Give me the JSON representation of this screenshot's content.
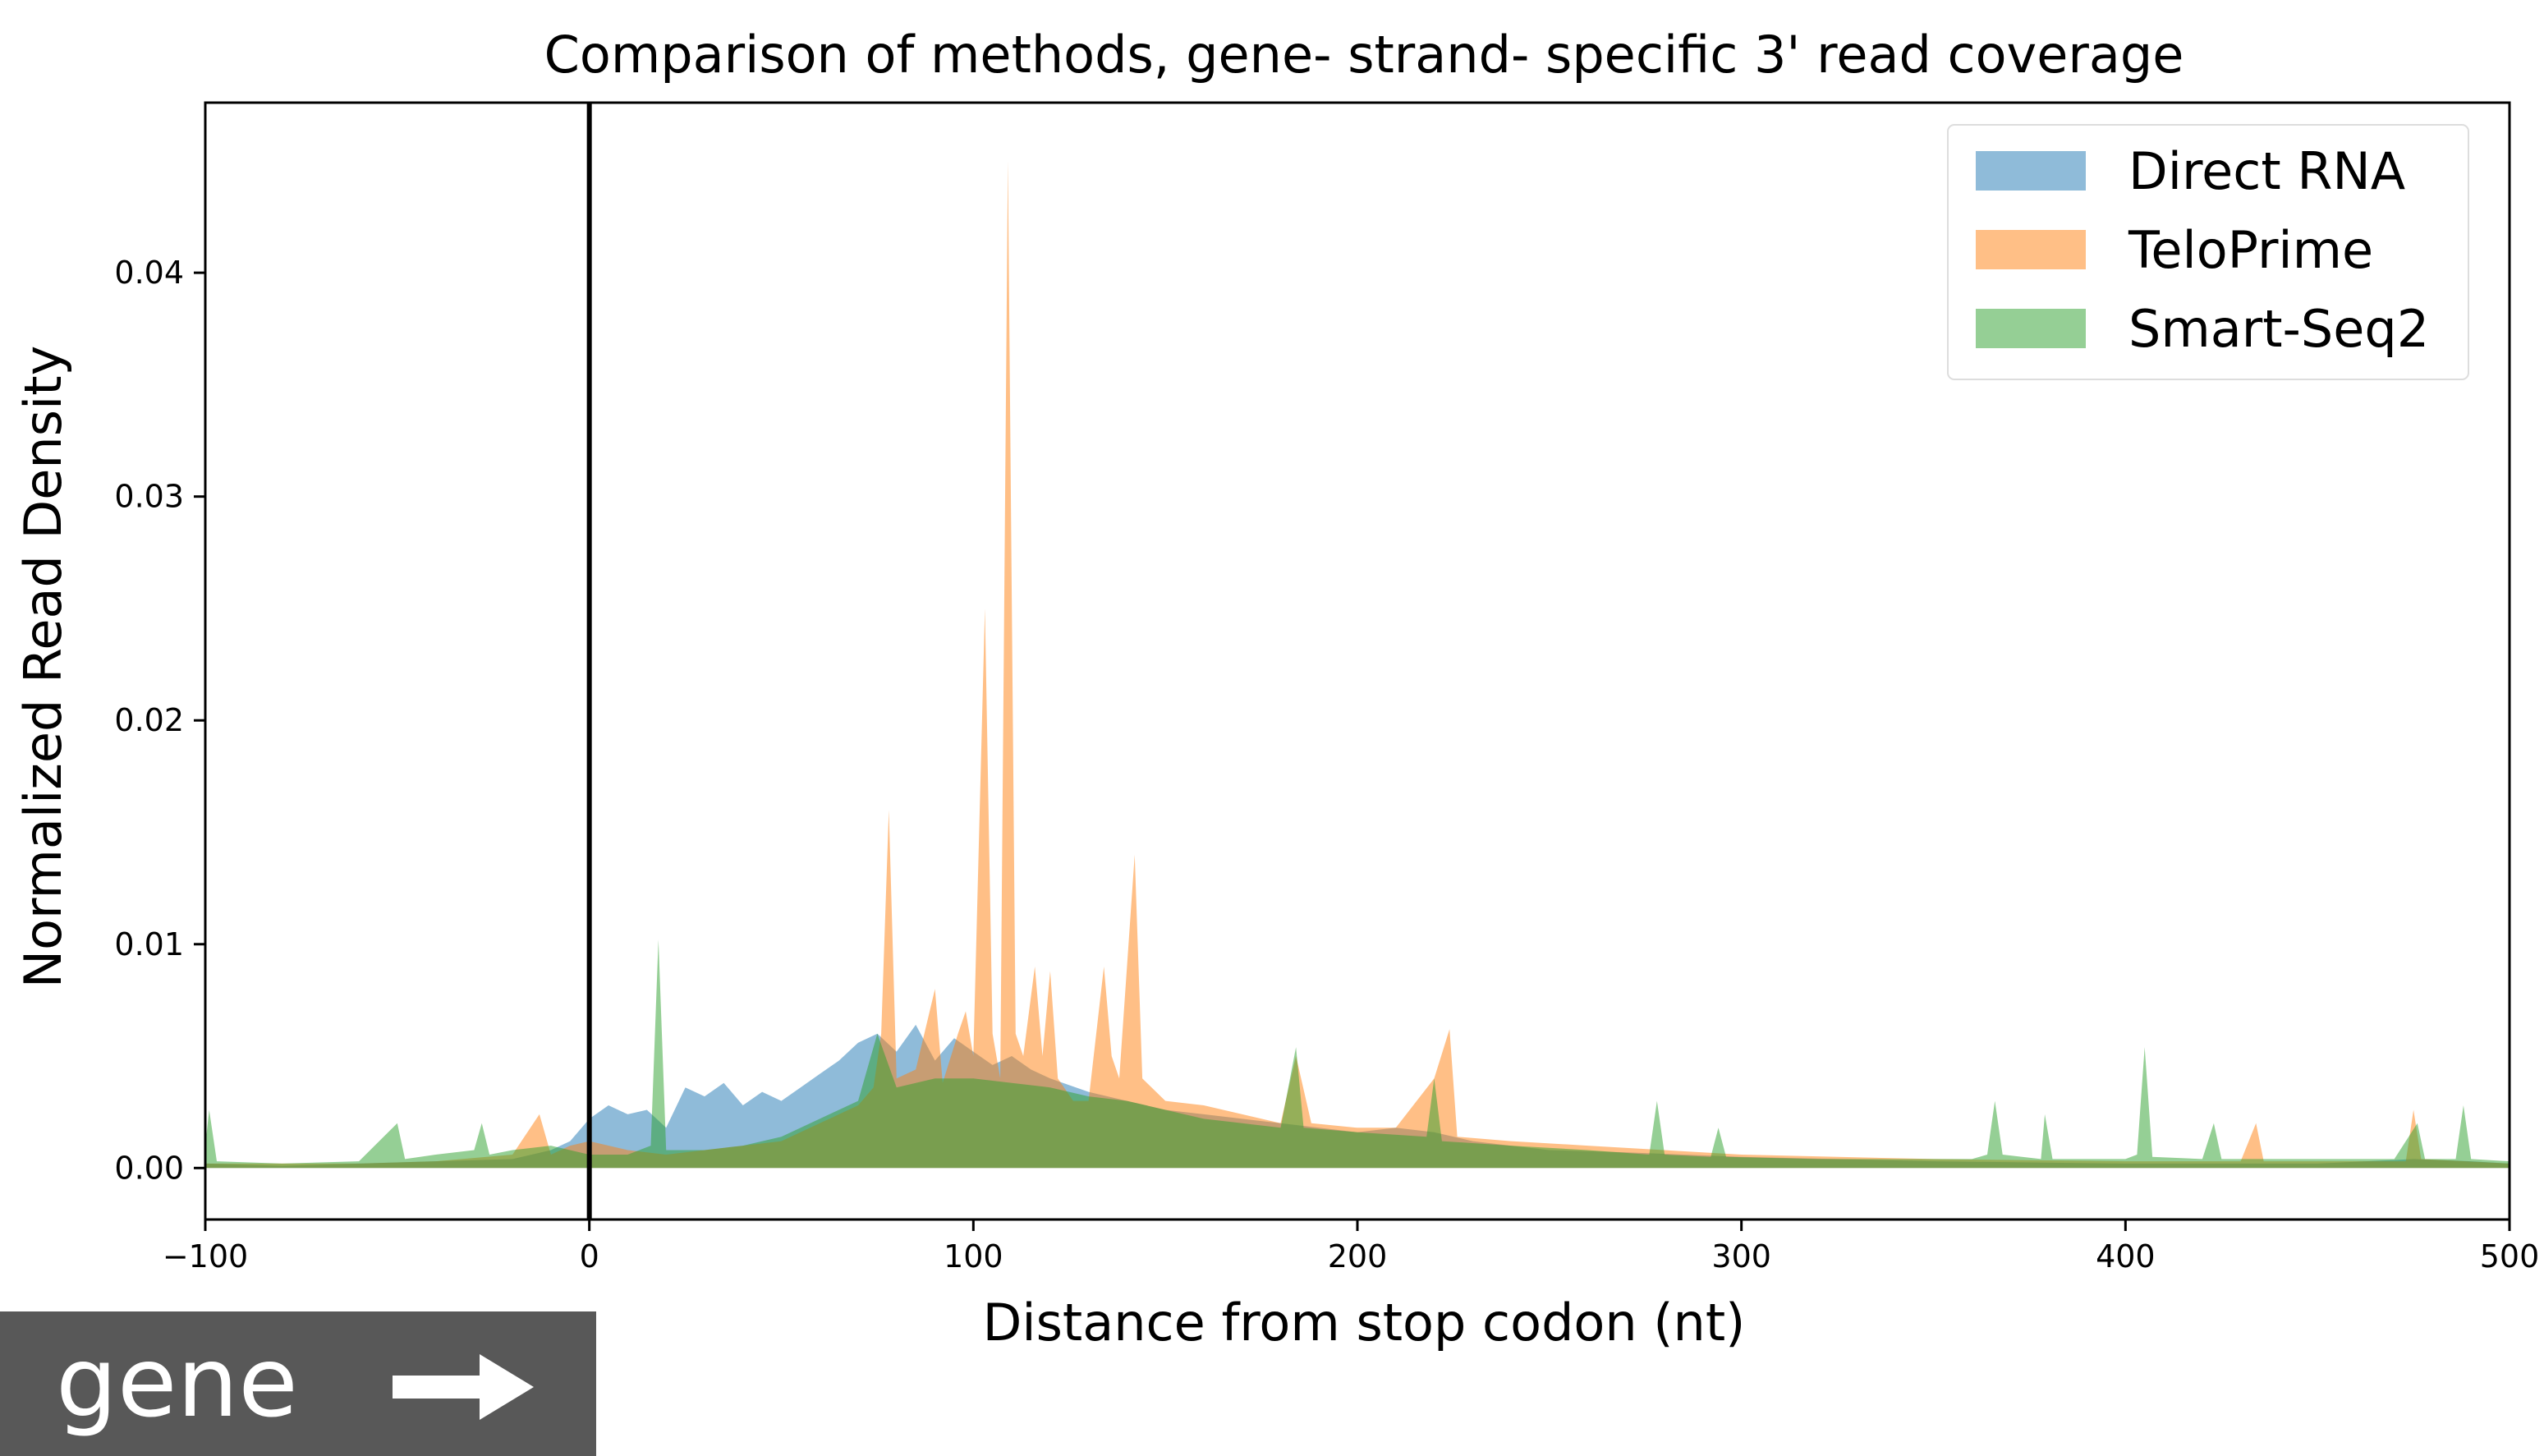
{
  "chart_data": {
    "type": "area",
    "title": "Comparison of methods, gene- strand- specific 3' read coverage",
    "xlabel": "Distance from stop codon (nt)",
    "ylabel": "Normalized Read Density",
    "xlim": [
      -100,
      500
    ],
    "ylim": [
      -0.0023,
      0.0476
    ],
    "x_ticks": [
      -100,
      0,
      100,
      200,
      300,
      400,
      500
    ],
    "x_tick_labels": [
      "−100",
      "0",
      "100",
      "200",
      "300",
      "400",
      "500"
    ],
    "y_ticks": [
      0.0,
      0.01,
      0.02,
      0.03,
      0.04
    ],
    "y_tick_labels": [
      "0.00",
      "0.01",
      "0.02",
      "0.03",
      "0.04"
    ],
    "grid": false,
    "legend_position": "top-right",
    "vline_x": 0,
    "series": [
      {
        "name": "Direct RNA",
        "color": "#1f77b4",
        "points": [
          [
            -100,
            0.0002
          ],
          [
            -80,
            0.0001
          ],
          [
            -60,
            0.0002
          ],
          [
            -40,
            0.0003
          ],
          [
            -20,
            0.0004
          ],
          [
            -10,
            0.0008
          ],
          [
            -5,
            0.0012
          ],
          [
            0,
            0.0022
          ],
          [
            5,
            0.0028
          ],
          [
            10,
            0.0024
          ],
          [
            15,
            0.0026
          ],
          [
            20,
            0.0018
          ],
          [
            25,
            0.0036
          ],
          [
            30,
            0.0032
          ],
          [
            35,
            0.0038
          ],
          [
            40,
            0.0028
          ],
          [
            45,
            0.0034
          ],
          [
            50,
            0.003
          ],
          [
            55,
            0.0036
          ],
          [
            60,
            0.0042
          ],
          [
            65,
            0.0048
          ],
          [
            70,
            0.0056
          ],
          [
            75,
            0.006
          ],
          [
            80,
            0.0052
          ],
          [
            85,
            0.0064
          ],
          [
            90,
            0.0048
          ],
          [
            95,
            0.0058
          ],
          [
            100,
            0.0052
          ],
          [
            105,
            0.0046
          ],
          [
            110,
            0.005
          ],
          [
            115,
            0.0044
          ],
          [
            120,
            0.004
          ],
          [
            130,
            0.0034
          ],
          [
            140,
            0.003
          ],
          [
            150,
            0.0026
          ],
          [
            160,
            0.0024
          ],
          [
            170,
            0.0022
          ],
          [
            180,
            0.002
          ],
          [
            190,
            0.0018
          ],
          [
            200,
            0.0016
          ],
          [
            210,
            0.0018
          ],
          [
            220,
            0.0016
          ],
          [
            230,
            0.0012
          ],
          [
            240,
            0.001
          ],
          [
            250,
            0.0008
          ],
          [
            270,
            0.0007
          ],
          [
            300,
            0.0005
          ],
          [
            350,
            0.0003
          ],
          [
            400,
            0.0002
          ],
          [
            450,
            0.0002
          ],
          [
            475,
            0.0004
          ],
          [
            490,
            0.0003
          ],
          [
            500,
            0.0002
          ]
        ]
      },
      {
        "name": "TeloPrime",
        "color": "#ff7f0e",
        "points": [
          [
            -100,
            0.0002
          ],
          [
            -80,
            0.0002
          ],
          [
            -60,
            0.0002
          ],
          [
            -40,
            0.0003
          ],
          [
            -20,
            0.0006
          ],
          [
            -13,
            0.0024
          ],
          [
            -10,
            0.0006
          ],
          [
            -5,
            0.001
          ],
          [
            0,
            0.0012
          ],
          [
            10,
            0.0008
          ],
          [
            20,
            0.0006
          ],
          [
            30,
            0.0008
          ],
          [
            40,
            0.001
          ],
          [
            50,
            0.0012
          ],
          [
            60,
            0.002
          ],
          [
            70,
            0.0028
          ],
          [
            74,
            0.0036
          ],
          [
            76,
            0.006
          ],
          [
            78,
            0.016
          ],
          [
            80,
            0.004
          ],
          [
            85,
            0.0044
          ],
          [
            90,
            0.008
          ],
          [
            92,
            0.0038
          ],
          [
            96,
            0.006
          ],
          [
            98,
            0.007
          ],
          [
            100,
            0.005
          ],
          [
            103,
            0.025
          ],
          [
            105,
            0.006
          ],
          [
            107,
            0.004
          ],
          [
            109,
            0.045
          ],
          [
            111,
            0.006
          ],
          [
            113,
            0.005
          ],
          [
            116,
            0.009
          ],
          [
            118,
            0.005
          ],
          [
            120,
            0.0088
          ],
          [
            122,
            0.004
          ],
          [
            126,
            0.003
          ],
          [
            130,
            0.003
          ],
          [
            134,
            0.009
          ],
          [
            136,
            0.005
          ],
          [
            138,
            0.004
          ],
          [
            142,
            0.014
          ],
          [
            144,
            0.004
          ],
          [
            150,
            0.003
          ],
          [
            160,
            0.0028
          ],
          [
            170,
            0.0024
          ],
          [
            180,
            0.002
          ],
          [
            184,
            0.005
          ],
          [
            188,
            0.002
          ],
          [
            200,
            0.0018
          ],
          [
            210,
            0.0018
          ],
          [
            220,
            0.004
          ],
          [
            224,
            0.0062
          ],
          [
            226,
            0.0014
          ],
          [
            240,
            0.0012
          ],
          [
            260,
            0.001
          ],
          [
            300,
            0.0006
          ],
          [
            350,
            0.0004
          ],
          [
            400,
            0.0003
          ],
          [
            430,
            0.0003
          ],
          [
            434,
            0.002
          ],
          [
            436,
            0.0003
          ],
          [
            473,
            0.0003
          ],
          [
            475,
            0.0026
          ],
          [
            477,
            0.0004
          ],
          [
            500,
            0.0002
          ]
        ]
      },
      {
        "name": "Smart-Seq2",
        "color": "#2ca02c",
        "points": [
          [
            -100,
            0.001
          ],
          [
            -99,
            0.0026
          ],
          [
            -97,
            0.0003
          ],
          [
            -80,
            0.0002
          ],
          [
            -60,
            0.0003
          ],
          [
            -50,
            0.002
          ],
          [
            -48,
            0.0004
          ],
          [
            -40,
            0.0006
          ],
          [
            -30,
            0.0008
          ],
          [
            -28,
            0.002
          ],
          [
            -26,
            0.0006
          ],
          [
            -20,
            0.0008
          ],
          [
            -10,
            0.001
          ],
          [
            0,
            0.0006
          ],
          [
            10,
            0.0006
          ],
          [
            16,
            0.001
          ],
          [
            18,
            0.0102
          ],
          [
            20,
            0.0008
          ],
          [
            30,
            0.0008
          ],
          [
            40,
            0.001
          ],
          [
            50,
            0.0014
          ],
          [
            60,
            0.0022
          ],
          [
            70,
            0.003
          ],
          [
            75,
            0.006
          ],
          [
            80,
            0.0036
          ],
          [
            90,
            0.004
          ],
          [
            100,
            0.004
          ],
          [
            110,
            0.0038
          ],
          [
            120,
            0.0036
          ],
          [
            130,
            0.0032
          ],
          [
            140,
            0.003
          ],
          [
            150,
            0.0026
          ],
          [
            160,
            0.0022
          ],
          [
            170,
            0.002
          ],
          [
            180,
            0.0018
          ],
          [
            184,
            0.0054
          ],
          [
            186,
            0.0018
          ],
          [
            200,
            0.0016
          ],
          [
            218,
            0.0014
          ],
          [
            220,
            0.004
          ],
          [
            222,
            0.0012
          ],
          [
            240,
            0.001
          ],
          [
            260,
            0.0008
          ],
          [
            276,
            0.0006
          ],
          [
            278,
            0.003
          ],
          [
            280,
            0.0006
          ],
          [
            292,
            0.0005
          ],
          [
            294,
            0.0018
          ],
          [
            296,
            0.0005
          ],
          [
            320,
            0.0004
          ],
          [
            340,
            0.0004
          ],
          [
            360,
            0.0004
          ],
          [
            364,
            0.0006
          ],
          [
            366,
            0.003
          ],
          [
            368,
            0.0006
          ],
          [
            378,
            0.0004
          ],
          [
            379,
            0.0024
          ],
          [
            381,
            0.0004
          ],
          [
            400,
            0.0004
          ],
          [
            403,
            0.0006
          ],
          [
            405,
            0.0054
          ],
          [
            407,
            0.0005
          ],
          [
            420,
            0.0004
          ],
          [
            423,
            0.002
          ],
          [
            425,
            0.0004
          ],
          [
            470,
            0.0004
          ],
          [
            476,
            0.002
          ],
          [
            478,
            0.0004
          ],
          [
            486,
            0.0004
          ],
          [
            488,
            0.0028
          ],
          [
            490,
            0.0004
          ],
          [
            500,
            0.0003
          ]
        ]
      }
    ]
  },
  "gene_label": {
    "text": "gene"
  }
}
